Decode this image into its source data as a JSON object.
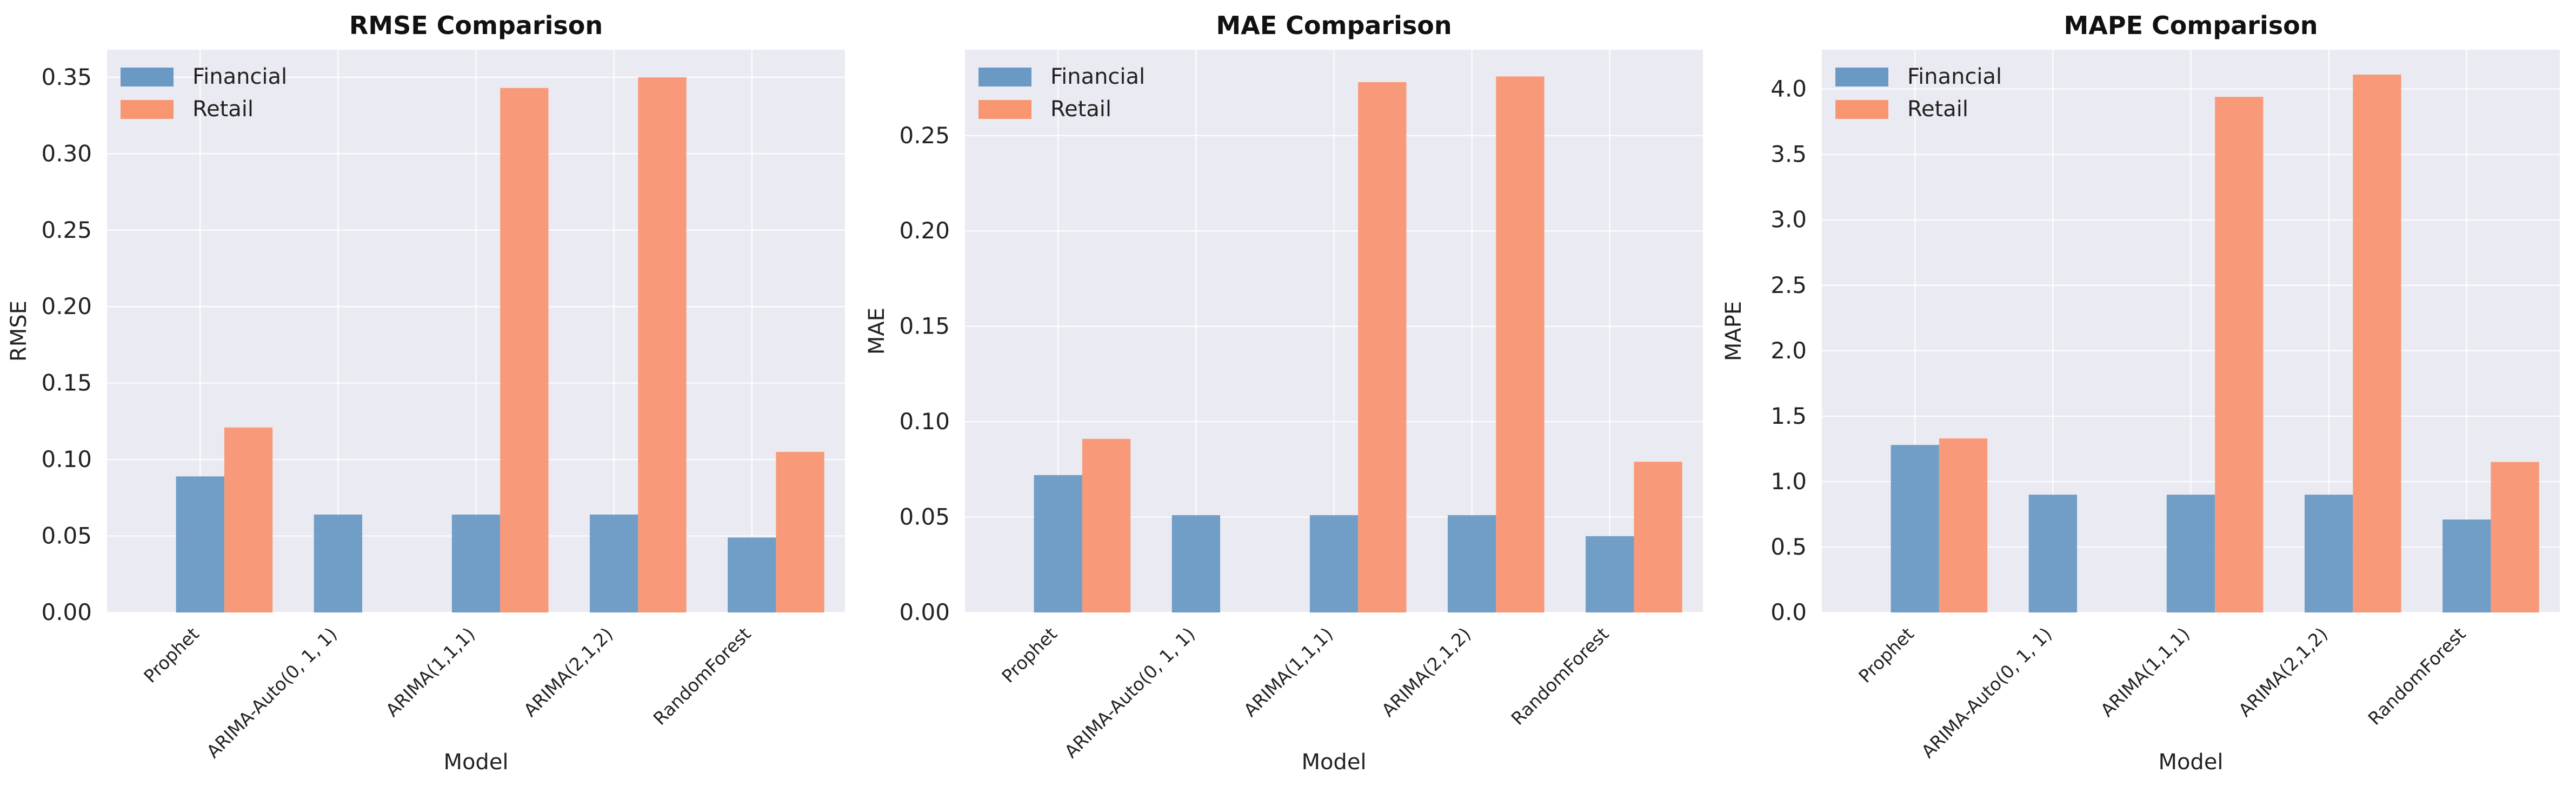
{
  "colors": {
    "financial": "#6a9ac4",
    "retail": "#f99672"
  },
  "chart_data": [
    {
      "type": "bar",
      "title": "RMSE Comparison",
      "xlabel": "Model",
      "ylabel": "RMSE",
      "categories": [
        "Prophet",
        "ARIMA-Auto(0, 1, 1)",
        "ARIMA(1,1,1)",
        "ARIMA(2,1,2)",
        "RandomForest"
      ],
      "series": [
        {
          "name": "Financial",
          "values": [
            0.089,
            0.064,
            0.064,
            0.064,
            0.049
          ]
        },
        {
          "name": "Retail",
          "values": [
            0.121,
            null,
            0.343,
            0.35,
            0.105
          ]
        }
      ],
      "ylim": [
        0,
        0.368
      ],
      "yticks": [
        0.0,
        0.05,
        0.1,
        0.15,
        0.2,
        0.25,
        0.3,
        0.35
      ],
      "ytick_labels": [
        "0.00",
        "0.05",
        "0.10",
        "0.15",
        "0.20",
        "0.25",
        "0.30",
        "0.35"
      ],
      "grid": true,
      "legend": "top-left"
    },
    {
      "type": "bar",
      "title": "MAE Comparison",
      "xlabel": "Model",
      "ylabel": "MAE",
      "categories": [
        "Prophet",
        "ARIMA-Auto(0, 1, 1)",
        "ARIMA(1,1,1)",
        "ARIMA(2,1,2)",
        "RandomForest"
      ],
      "series": [
        {
          "name": "Financial",
          "values": [
            0.072,
            0.051,
            0.051,
            0.051,
            0.04
          ]
        },
        {
          "name": "Retail",
          "values": [
            0.091,
            null,
            0.278,
            0.281,
            0.079
          ]
        }
      ],
      "ylim": [
        0,
        0.295
      ],
      "yticks": [
        0.0,
        0.05,
        0.1,
        0.15,
        0.2,
        0.25
      ],
      "ytick_labels": [
        "0.00",
        "0.05",
        "0.10",
        "0.15",
        "0.20",
        "0.25"
      ],
      "grid": true,
      "legend": "top-left"
    },
    {
      "type": "bar",
      "title": "MAPE Comparison",
      "xlabel": "Model",
      "ylabel": "MAPE",
      "categories": [
        "Prophet",
        "ARIMA-Auto(0, 1, 1)",
        "ARIMA(1,1,1)",
        "ARIMA(2,1,2)",
        "RandomForest"
      ],
      "series": [
        {
          "name": "Financial",
          "values": [
            1.28,
            0.9,
            0.9,
            0.9,
            0.71
          ]
        },
        {
          "name": "Retail",
          "values": [
            1.33,
            null,
            3.94,
            4.11,
            1.15
          ]
        }
      ],
      "ylim": [
        0,
        4.3
      ],
      "yticks": [
        0.0,
        0.5,
        1.0,
        1.5,
        2.0,
        2.5,
        3.0,
        3.5,
        4.0
      ],
      "ytick_labels": [
        "0.0",
        "0.5",
        "1.0",
        "1.5",
        "2.0",
        "2.5",
        "3.0",
        "3.5",
        "4.0"
      ],
      "grid": true,
      "legend": "top-left"
    }
  ]
}
